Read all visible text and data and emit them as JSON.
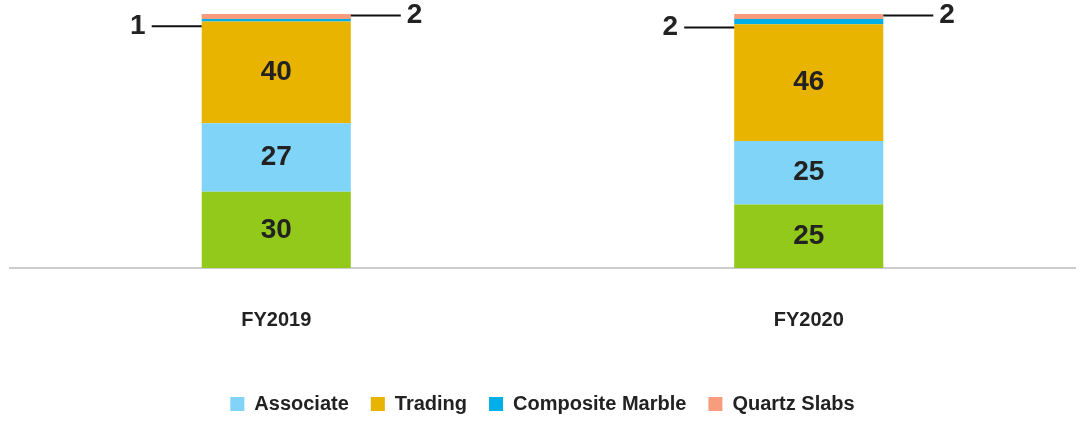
{
  "chart_data": {
    "type": "bar",
    "stacked": true,
    "categories": [
      "FY2019",
      "FY2020"
    ],
    "series": [
      {
        "color": "#92c91a",
        "values": [
          30,
          25
        ]
      },
      {
        "name": "Associate",
        "color": "#80d4f8",
        "values": [
          27,
          25
        ]
      },
      {
        "name": "Trading",
        "color": "#e8b400",
        "values": [
          40,
          46
        ]
      },
      {
        "name": "Composite Marble",
        "color": "#00aee8",
        "values": [
          1,
          2
        ]
      },
      {
        "name": "Quartz Slabs",
        "color": "#f79c7c",
        "values": [
          2,
          2
        ]
      }
    ],
    "data_labels": true,
    "legend": "bottom",
    "grid": false
  }
}
